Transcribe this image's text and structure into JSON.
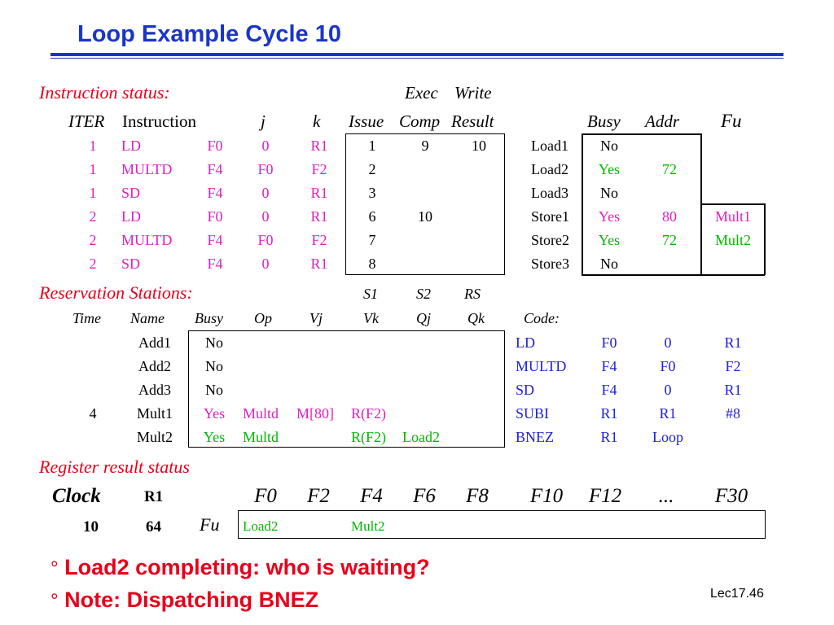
{
  "title": "Loop Example Cycle 10",
  "instruction_status": {
    "section_label": "Instruction status:",
    "super_headers": [
      "Exec",
      "Write"
    ],
    "headers": [
      "ITER",
      "Instruction",
      "j",
      "k",
      "Issue",
      "Comp",
      "Result"
    ],
    "rows": [
      {
        "iter": "1",
        "op": "LD",
        "dest": "F0",
        "j": "0",
        "k": "R1",
        "issue": "1",
        "comp": "9",
        "result": "10"
      },
      {
        "iter": "1",
        "op": "MULTD",
        "dest": "F4",
        "j": "F0",
        "k": "F2",
        "issue": "2",
        "comp": "",
        "result": ""
      },
      {
        "iter": "1",
        "op": "SD",
        "dest": "F4",
        "j": "0",
        "k": "R1",
        "issue": "3",
        "comp": "",
        "result": ""
      },
      {
        "iter": "2",
        "op": "LD",
        "dest": "F0",
        "j": "0",
        "k": "R1",
        "issue": "6",
        "comp": "10",
        "result": ""
      },
      {
        "iter": "2",
        "op": "MULTD",
        "dest": "F4",
        "j": "F0",
        "k": "F2",
        "issue": "7",
        "comp": "",
        "result": ""
      },
      {
        "iter": "2",
        "op": "SD",
        "dest": "F4",
        "j": "0",
        "k": "R1",
        "issue": "8",
        "comp": "",
        "result": ""
      }
    ]
  },
  "load_store": {
    "headers": [
      "Busy",
      "Addr",
      "Fu"
    ],
    "rows": [
      {
        "name": "Load1",
        "busy": "No",
        "addr": "",
        "fu": ""
      },
      {
        "name": "Load2",
        "busy": "Yes",
        "addr": "72",
        "fu": ""
      },
      {
        "name": "Load3",
        "busy": "No",
        "addr": "",
        "fu": ""
      },
      {
        "name": "Store1",
        "busy": "Yes",
        "addr": "80",
        "fu": "Mult1"
      },
      {
        "name": "Store2",
        "busy": "Yes",
        "addr": "72",
        "fu": "Mult2"
      },
      {
        "name": "Store3",
        "busy": "No",
        "addr": "",
        "fu": ""
      }
    ]
  },
  "reservation_stations": {
    "section_label": "Reservation Stations:",
    "super_headers": [
      "S1",
      "S2",
      "RS"
    ],
    "headers": [
      "Time",
      "Name",
      "Busy",
      "Op",
      "Vj",
      "Vk",
      "Qj",
      "Qk"
    ],
    "rows": [
      {
        "time": "",
        "name": "Add1",
        "busy": "No",
        "op": "",
        "vj": "",
        "vk": "",
        "qj": "",
        "qk": ""
      },
      {
        "time": "",
        "name": "Add2",
        "busy": "No",
        "op": "",
        "vj": "",
        "vk": "",
        "qj": "",
        "qk": ""
      },
      {
        "time": "",
        "name": "Add3",
        "busy": "No",
        "op": "",
        "vj": "",
        "vk": "",
        "qj": "",
        "qk": ""
      },
      {
        "time": "4",
        "name": "Mult1",
        "busy": "Yes",
        "op": "Multd",
        "vj": "M[80]",
        "vk": "R(F2)",
        "qj": "",
        "qk": ""
      },
      {
        "time": "",
        "name": "Mult2",
        "busy": "Yes",
        "op": "Multd",
        "vj": "",
        "vk": "R(F2)",
        "qj": "Load2",
        "qk": ""
      }
    ]
  },
  "code": {
    "label": "Code:",
    "rows": [
      [
        "LD",
        "F0",
        "0",
        "R1"
      ],
      [
        "MULTD",
        "F4",
        "F0",
        "F2"
      ],
      [
        "SD",
        "F4",
        "0",
        "R1"
      ],
      [
        "SUBI",
        "R1",
        "R1",
        "#8"
      ],
      [
        "BNEZ",
        "R1",
        "Loop",
        ""
      ]
    ]
  },
  "register_status": {
    "section_label": "Register result status",
    "clock_label": "Clock",
    "r1_label": "R1",
    "clock_value": "10",
    "r1_value": "64",
    "fu_label": "Fu",
    "registers": [
      "F0",
      "F2",
      "F4",
      "F6",
      "F8",
      "F10",
      "F12",
      "...",
      "F30"
    ],
    "fu_values": [
      "Load2",
      "",
      "Mult2",
      "",
      "",
      "",
      "",
      "",
      ""
    ]
  },
  "bullets": [
    "Load2 completing: who is waiting?",
    "Note: Dispatching BNEZ"
  ],
  "bullet_marker": "°",
  "footer": "Lec17.46",
  "colors": {
    "title": "#1a35c8",
    "section": "#e8001c",
    "instruction_text": "#e020c0",
    "yes": "#00b800",
    "code": "#2020d8"
  }
}
